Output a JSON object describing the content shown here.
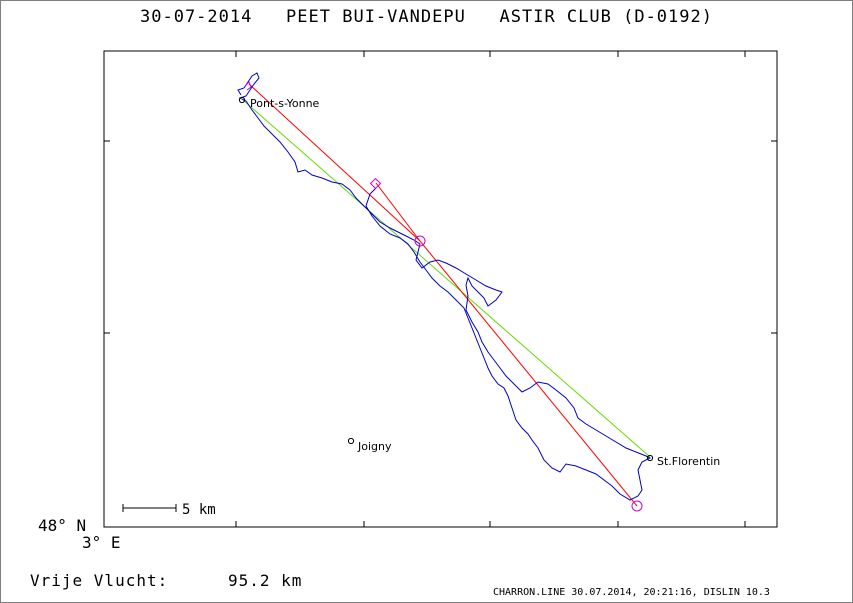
{
  "title": "30-07-2014   PEET BUI-VANDEPU   ASTIR CLUB (D-0192)",
  "axis": {
    "lat_label": "48° N",
    "lon_label": "3° E"
  },
  "scale_bar": {
    "label": "5 km"
  },
  "places": [
    {
      "name": "Pont-s-Yonne"
    },
    {
      "name": "Joigny"
    },
    {
      "name": "St.Florentin"
    }
  ],
  "distance": {
    "label": "Vrije Vlucht:",
    "value": "95.2 km"
  },
  "footer": "CHARRON.LINE 30.07.2014, 20:21:16, DISLIN 10.3",
  "colors": {
    "track": "#0000cc",
    "task_line": "#ff0000",
    "straight_line": "#66dd00",
    "turnpoint": "#cc00cc"
  }
}
